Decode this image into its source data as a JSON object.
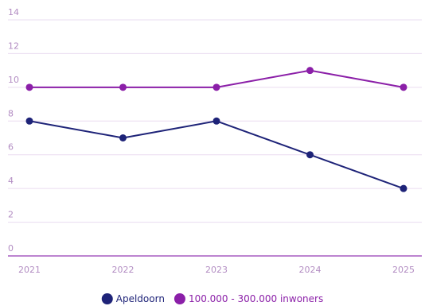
{
  "chart_data": {
    "type": "line",
    "title": "",
    "xlabel": "",
    "ylabel": "",
    "x": [
      "2021",
      "2022",
      "2023",
      "2024",
      "2025"
    ],
    "ylim": [
      0,
      14
    ],
    "yticks": [
      "0",
      "2",
      "4",
      "6",
      "8",
      "10",
      "12",
      "14"
    ],
    "grid": true,
    "legend_position": "bottom-center",
    "series": [
      {
        "name": "Apeldoorn",
        "values": [
          8,
          7,
          8,
          6,
          4
        ],
        "color": "#1e2378"
      },
      {
        "name": "100.000 - 300.000 inwoners",
        "values": [
          10,
          10,
          10,
          11,
          10
        ],
        "color": "#8b1fa8"
      }
    ],
    "colors": {
      "grid": "#eadcf0",
      "axis": "#a55bc0",
      "tick_text": "#b28cc2"
    }
  }
}
